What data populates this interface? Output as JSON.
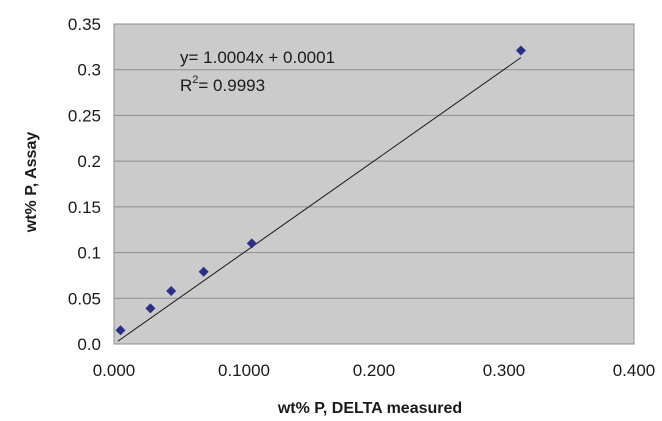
{
  "chart_data": {
    "type": "scatter",
    "title": "",
    "xlabel": "wt% P, DELTA measured",
    "ylabel": "wt% P, Assay",
    "xlim": [
      0,
      0.4
    ],
    "ylim": [
      0,
      0.35
    ],
    "x_ticks": [
      "0.000",
      "0.1000",
      "0.200",
      "0.300",
      "0.400"
    ],
    "y_ticks": [
      "0.0",
      "0.05",
      "0.1",
      "0.15",
      "0.2",
      "0.25",
      "0.3",
      "0.35"
    ],
    "grid": "horizontal",
    "series": [
      {
        "x": [
          0.005,
          0.028,
          0.044,
          0.069,
          0.106,
          0.313
        ],
        "y": [
          0.015,
          0.039,
          0.058,
          0.079,
          0.11,
          0.321
        ],
        "marker_color": "#2b2f86"
      }
    ],
    "trendline": {
      "slope": 1.0004,
      "intercept": 0.0001,
      "x_range": [
        0.003,
        0.313
      ],
      "color": "#1a1a1a"
    },
    "annotations": {
      "equation": "y= 1.0004x + 0.0001",
      "r2_prefix": "R",
      "r2_sup": "2",
      "r2_value": "= 0.9993"
    },
    "colors": {
      "plot_background": "#cbcbcb",
      "grid": "#8f8f8f"
    }
  }
}
